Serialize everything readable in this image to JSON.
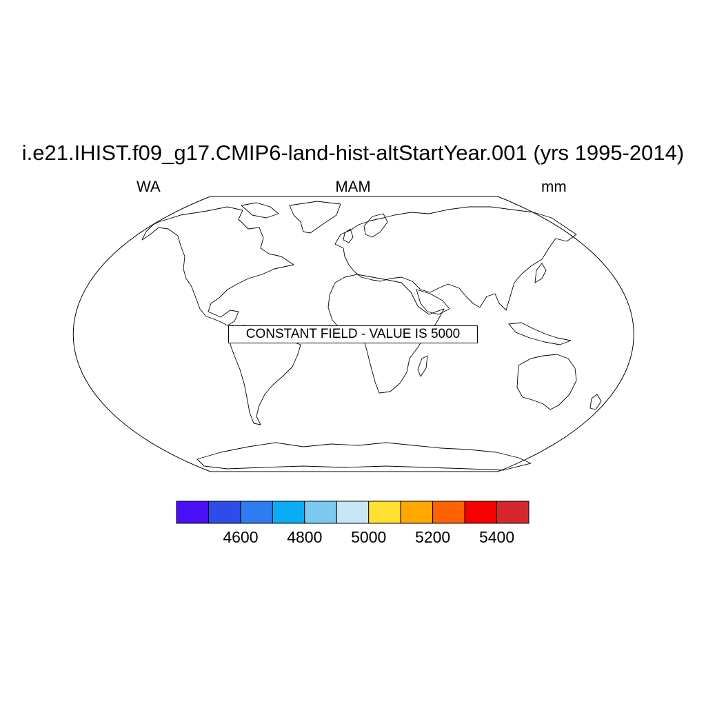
{
  "title": "i.e21.IHIST.f09_g17.CMIP6-land-hist-altStartYear.001 (yrs 1995-2014)",
  "left_string": "WA",
  "center_string": "MAM",
  "right_string": "mm",
  "notice": "CONSTANT FIELD - VALUE IS 5000",
  "map": {
    "projection": "robinson",
    "field_value": 5000,
    "features": [
      "continent-outlines"
    ]
  },
  "colorbar": {
    "colors": [
      "#4a10f5",
      "#2e4ce8",
      "#2e7cf0",
      "#0aadf5",
      "#7ccaef",
      "#c8e6f5",
      "#fde030",
      "#fea800",
      "#ff6200",
      "#f90000",
      "#d6282c"
    ],
    "boundaries": [
      4500,
      4600,
      4700,
      4800,
      4900,
      5000,
      5100,
      5200,
      5300,
      5400
    ],
    "labels": [
      {
        "text": "4600",
        "value": 4600
      },
      {
        "text": "4800",
        "value": 4800
      },
      {
        "text": "5000",
        "value": 5000
      },
      {
        "text": "5200",
        "value": 5200
      },
      {
        "text": "5400",
        "value": 5400
      }
    ]
  }
}
